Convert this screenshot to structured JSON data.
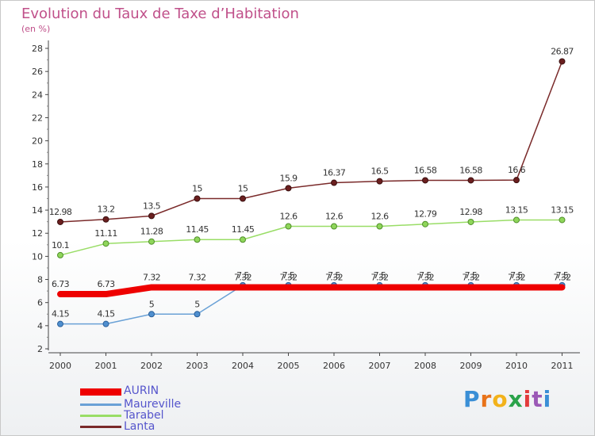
{
  "title": "Evolution du Taux de Taxe d’Habitation",
  "subtitle": "(en %)",
  "logo": {
    "letters": [
      "P",
      "r",
      "o",
      "x",
      "i",
      "t",
      "i"
    ],
    "colors": [
      "#3a8fd6",
      "#e8731a",
      "#f2b21b",
      "#2aa34a",
      "#e23b3b",
      "#9b59b6",
      "#3a8fd6"
    ]
  },
  "chart_data": {
    "type": "line",
    "title": "Evolution du Taux de Taxe d’Habitation",
    "ylabel": "(en %)",
    "xlabel": "",
    "x": [
      "2000",
      "2001",
      "2002",
      "2003",
      "2004",
      "2005",
      "2006",
      "2007",
      "2008",
      "2009",
      "2010",
      "2011"
    ],
    "ylim": [
      2,
      28
    ],
    "yticks": [
      "2",
      "4",
      "6",
      "8",
      "10",
      "12",
      "14",
      "16",
      "18",
      "20",
      "22",
      "24",
      "26",
      "28"
    ],
    "grid": false,
    "legend_position": "bottom-left",
    "series": [
      {
        "name": "AURIN",
        "color": "#ee0000",
        "values": [
          6.73,
          6.73,
          7.32,
          7.32,
          7.32,
          7.32,
          7.32,
          7.32,
          7.32,
          7.32,
          7.32,
          7.32
        ],
        "labels": [
          "6.73",
          "6.73",
          "7.32",
          "7.32",
          "7.32",
          "7.32",
          "7.32",
          "7.32",
          "7.32",
          "7.32",
          "7.32",
          "7.32"
        ]
      },
      {
        "name": "Maureville",
        "color": "#6aa1d6",
        "values": [
          4.15,
          4.15,
          5,
          5,
          7.5,
          7.5,
          7.5,
          7.5,
          7.5,
          7.5,
          7.5,
          7.5
        ],
        "labels": [
          "4.15",
          "4.15",
          "5",
          "5",
          "7.5",
          "7.5",
          "7.5",
          "7.5",
          "7.5",
          "7.5",
          "7.5",
          "7.5"
        ]
      },
      {
        "name": "Tarabel",
        "color": "#99dd66",
        "values": [
          10.1,
          11.11,
          11.28,
          11.45,
          11.45,
          12.6,
          12.6,
          12.6,
          12.79,
          12.98,
          13.15,
          13.15
        ],
        "labels": [
          "10.1",
          "11.11",
          "11.28",
          "11.45",
          "11.45",
          "12.6",
          "12.6",
          "12.6",
          "12.79",
          "12.98",
          "13.15",
          "13.15"
        ]
      },
      {
        "name": "Lanta",
        "color": "#7a2a2a",
        "values": [
          12.98,
          13.2,
          13.5,
          15,
          15,
          15.9,
          16.37,
          16.5,
          16.58,
          16.58,
          16.6,
          26.87
        ],
        "labels": [
          "12.98",
          "13.2",
          "13.5",
          "15",
          "15",
          "15.9",
          "16.37",
          "16.5",
          "16.58",
          "16.58",
          "16.6",
          "26.87"
        ]
      }
    ]
  }
}
